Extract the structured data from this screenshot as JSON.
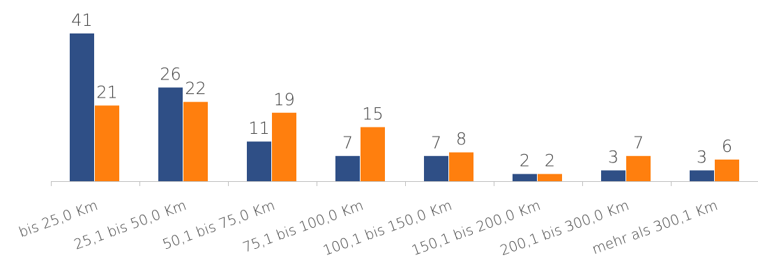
{
  "chart_data": {
    "type": "bar",
    "title": "",
    "xlabel": "",
    "ylabel": "",
    "categories": [
      "bis 25,0 Km",
      "25,1 bis 50,0 Km",
      "50,1 bis 75,0 Km",
      "75,1 bis 100,0 Km",
      "100,1 bis 150,0 Km",
      "150,1 bis 200,0 Km",
      "200,1 bis 300,0 Km",
      "mehr als 300,1 Km"
    ],
    "series": [
      {
        "color": "#2F4F86",
        "values": [
          41,
          26,
          11,
          7,
          7,
          2,
          3,
          3
        ]
      },
      {
        "color": "#FF7F0E",
        "values": [
          21,
          22,
          19,
          15,
          8,
          2,
          7,
          6
        ]
      }
    ],
    "ylim": [
      0,
      41
    ],
    "grid": false,
    "legend": "none",
    "data_labels": true
  }
}
